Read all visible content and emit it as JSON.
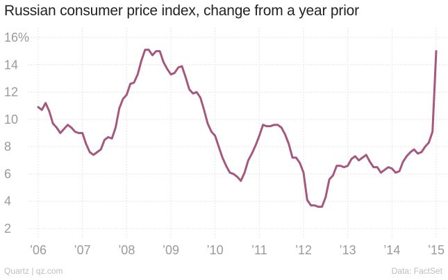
{
  "chart_data": {
    "type": "line",
    "title": "Russian consumer price index, change from a year prior",
    "xlabel": "",
    "ylabel": "",
    "ylim": [
      2,
      16
    ],
    "xlim": [
      2005.8,
      2015.2
    ],
    "yticks": [
      {
        "value": 2,
        "label": "2"
      },
      {
        "value": 4,
        "label": "4"
      },
      {
        "value": 6,
        "label": "6"
      },
      {
        "value": 8,
        "label": "8"
      },
      {
        "value": 10,
        "label": "10"
      },
      {
        "value": 12,
        "label": "12"
      },
      {
        "value": 14,
        "label": "14"
      },
      {
        "value": 16,
        "label": "16%"
      }
    ],
    "xticks": [
      {
        "value": 2006,
        "label": "’06"
      },
      {
        "value": 2007,
        "label": "’07"
      },
      {
        "value": 2008,
        "label": "’08"
      },
      {
        "value": 2009,
        "label": "’09"
      },
      {
        "value": 2010,
        "label": "’10"
      },
      {
        "value": 2011,
        "label": "’11"
      },
      {
        "value": 2012,
        "label": "’12"
      },
      {
        "value": 2013,
        "label": "’13"
      },
      {
        "value": 2014,
        "label": "’14"
      },
      {
        "value": 2015,
        "label": "’15"
      }
    ],
    "grid": true,
    "line_color": "#a5577e",
    "series": [
      {
        "name": "",
        "x": [
          2006.0,
          2006.083,
          2006.167,
          2006.25,
          2006.333,
          2006.417,
          2006.5,
          2006.583,
          2006.667,
          2006.75,
          2006.833,
          2006.917,
          2007.0,
          2007.083,
          2007.167,
          2007.25,
          2007.333,
          2007.417,
          2007.5,
          2007.583,
          2007.667,
          2007.75,
          2007.833,
          2007.917,
          2008.0,
          2008.083,
          2008.167,
          2008.25,
          2008.333,
          2008.417,
          2008.5,
          2008.583,
          2008.667,
          2008.75,
          2008.833,
          2008.917,
          2009.0,
          2009.083,
          2009.167,
          2009.25,
          2009.333,
          2009.417,
          2009.5,
          2009.583,
          2009.667,
          2009.75,
          2009.833,
          2009.917,
          2010.0,
          2010.083,
          2010.167,
          2010.25,
          2010.333,
          2010.417,
          2010.5,
          2010.583,
          2010.667,
          2010.75,
          2010.833,
          2010.917,
          2011.0,
          2011.083,
          2011.167,
          2011.25,
          2011.333,
          2011.417,
          2011.5,
          2011.583,
          2011.667,
          2011.75,
          2011.833,
          2011.917,
          2012.0,
          2012.083,
          2012.167,
          2012.25,
          2012.333,
          2012.417,
          2012.5,
          2012.583,
          2012.667,
          2012.75,
          2012.833,
          2012.917,
          2013.0,
          2013.083,
          2013.167,
          2013.25,
          2013.333,
          2013.417,
          2013.5,
          2013.583,
          2013.667,
          2013.75,
          2013.833,
          2013.917,
          2014.0,
          2014.083,
          2014.167,
          2014.25,
          2014.333,
          2014.417,
          2014.5,
          2014.583,
          2014.667,
          2014.75,
          2014.833,
          2014.917,
          2015.0
        ],
        "y": [
          10.9,
          10.7,
          11.2,
          10.6,
          9.7,
          9.4,
          9.0,
          9.3,
          9.6,
          9.4,
          9.1,
          9.0,
          9.0,
          8.2,
          7.6,
          7.4,
          7.6,
          7.8,
          8.5,
          8.7,
          8.6,
          9.4,
          10.8,
          11.5,
          11.8,
          12.6,
          12.7,
          13.3,
          14.3,
          15.1,
          15.1,
          14.7,
          15.0,
          15.0,
          14.2,
          13.7,
          13.3,
          13.4,
          13.8,
          13.9,
          13.1,
          12.2,
          11.9,
          12.0,
          11.6,
          10.7,
          9.7,
          9.1,
          8.8,
          8.0,
          7.2,
          6.6,
          6.1,
          6.0,
          5.8,
          5.5,
          6.1,
          7.0,
          7.5,
          8.1,
          8.8,
          9.6,
          9.5,
          9.5,
          9.6,
          9.6,
          9.4,
          8.9,
          8.2,
          7.2,
          7.2,
          6.8,
          6.1,
          4.1,
          3.7,
          3.7,
          3.6,
          3.6,
          4.3,
          5.6,
          5.9,
          6.6,
          6.6,
          6.5,
          6.6,
          7.1,
          7.3,
          7.0,
          7.2,
          7.4,
          6.9,
          6.5,
          6.5,
          6.1,
          6.3,
          6.5,
          6.4,
          6.1,
          6.2,
          6.9,
          7.3,
          7.6,
          7.8,
          7.5,
          7.6,
          8.0,
          8.3,
          9.1,
          15.0
        ]
      }
    ]
  },
  "footer": {
    "source_left": "Quartz | qz.com",
    "source_right": "Data: FactSet"
  }
}
